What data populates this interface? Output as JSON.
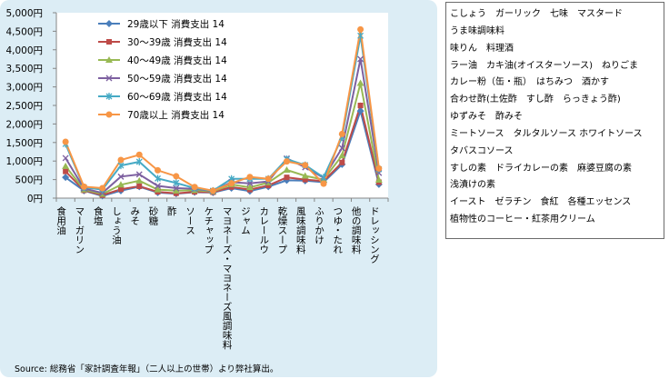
{
  "chart_data": {
    "type": "line",
    "categories": [
      "食用油",
      "マーガリン",
      "食塩",
      "しょう油",
      "みそ",
      "砂糖",
      "酢",
      "ソース",
      "ケチャップ",
      "マヨネーズ・マヨネーズ風調味料",
      "ジャム",
      "カレールウ",
      "乾燥スープ",
      "風味調味料",
      "ふりかけ",
      "つゆ・たれ",
      "他の調味料",
      "ドレッシング"
    ],
    "series": [
      {
        "name": "29歳以下 消費支出 14",
        "color": "#4a7ebb",
        "marker": "diamond",
        "values": [
          560,
          200,
          60,
          200,
          310,
          150,
          120,
          160,
          150,
          270,
          190,
          310,
          480,
          470,
          430,
          910,
          2350,
          370
        ]
      },
      {
        "name": "30～39歳 消費支出 14",
        "color": "#be4b48",
        "marker": "square",
        "values": [
          720,
          210,
          80,
          240,
          320,
          170,
          130,
          170,
          160,
          300,
          230,
          340,
          560,
          500,
          460,
          960,
          2500,
          430
        ]
      },
      {
        "name": "40～49歳 消費支出 14",
        "color": "#98b954",
        "marker": "triangle",
        "values": [
          860,
          230,
          110,
          360,
          470,
          230,
          200,
          210,
          180,
          370,
          290,
          420,
          760,
          600,
          500,
          1150,
          3100,
          490
        ]
      },
      {
        "name": "50～59歳 消費支出 14",
        "color": "#7d60a0",
        "marker": "x",
        "values": [
          1080,
          260,
          140,
          580,
          640,
          330,
          270,
          250,
          190,
          430,
          400,
          450,
          1070,
          830,
          550,
          1350,
          3750,
          680
        ]
      },
      {
        "name": "60～69歳 消費支出 14",
        "color": "#46aac5",
        "marker": "star",
        "values": [
          1460,
          290,
          230,
          880,
          980,
          530,
          410,
          270,
          200,
          520,
          520,
          520,
          1050,
          890,
          560,
          1640,
          4380,
          780
        ]
      },
      {
        "name": "70歳以上 消費支出 14",
        "color": "#f79646",
        "marker": "circle",
        "values": [
          1520,
          310,
          270,
          1030,
          1170,
          750,
          590,
          300,
          200,
          400,
          570,
          520,
          990,
          890,
          390,
          1730,
          4550,
          800
        ]
      }
    ],
    "ylim": [
      0,
      5000
    ],
    "yticks": [
      "0円",
      "500円",
      "1,000円",
      "1,500円",
      "2,000円",
      "2,500円",
      "3,000円",
      "3,500円",
      "4,000円",
      "4,500円",
      "5,000円"
    ],
    "legend_position": "top-left",
    "grid": false
  },
  "source_note": "Source: 総務省「家計調査年報」（二人以上の世帯）より弊社算出。",
  "side_list": [
    "こしょう　ガーリック　七味　マスタード",
    "うま味調味料",
    "味りん　料理酒",
    "ラー油　カキ油(オイスターソース)　ねりごま",
    "カレー粉（缶・瓶）　はちみつ　酒かす",
    "合わせ酢(土佐酢　すし酢　らっきょう酢)",
    "ゆずみそ　酢みそ",
    "ミートソース　タルタルソース ホワイトソース",
    "タバスコソース",
    "すしの素　ドライカレーの素　麻婆豆腐の素",
    "浅漬けの素",
    "イースト　ゼラチン　食紅　各種エッセンス",
    "植物性のコーヒー・紅茶用クリーム"
  ]
}
